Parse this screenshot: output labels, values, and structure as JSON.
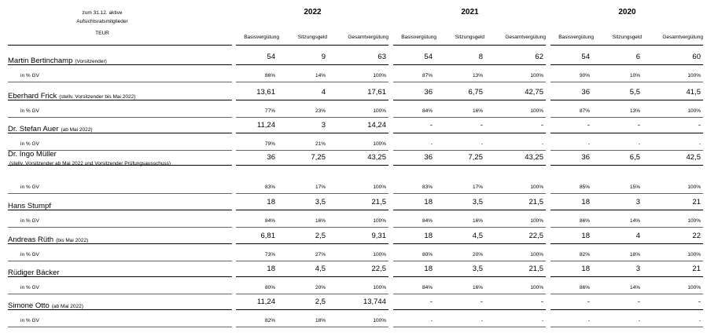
{
  "header": {
    "label_line1": "zum 31.12. aktive",
    "label_line2": "Aufsichtsratsmitglieder",
    "unit": "TEUR",
    "years": [
      "2022",
      "2021",
      "2020"
    ],
    "columns": [
      "Basisvergütung",
      "Sitzungsgeld",
      "Gesamtvergütung"
    ]
  },
  "pct_label": "in % GV",
  "members": [
    {
      "name": "Martin Bertinchamp",
      "note": "(Vorsitzender)",
      "values": [
        [
          "54",
          "9",
          "63"
        ],
        [
          "54",
          "8",
          "62"
        ],
        [
          "54",
          "6",
          "60"
        ]
      ],
      "pcts": [
        [
          "86%",
          "14%",
          "100%"
        ],
        [
          "87%",
          "13%",
          "100%"
        ],
        [
          "90%",
          "10%",
          "100%"
        ]
      ]
    },
    {
      "name": "Eberhard Frick",
      "note": "(stellv. Vorsitzender bis Mai 2022)",
      "values": [
        [
          "13,61",
          "4",
          "17,61"
        ],
        [
          "36",
          "6,75",
          "42,75"
        ],
        [
          "36",
          "5,5",
          "41,5"
        ]
      ],
      "pcts": [
        [
          "77%",
          "23%",
          "100%"
        ],
        [
          "84%",
          "16%",
          "100%"
        ],
        [
          "87%",
          "13%",
          "100%"
        ]
      ]
    },
    {
      "name": "Dr. Stefan Auer",
      "note": "(ab Mai 2022)",
      "values": [
        [
          "11,24",
          "3",
          "14,24"
        ],
        [
          "-",
          "-",
          "-"
        ],
        [
          "-",
          "-",
          "-"
        ]
      ],
      "pcts": [
        [
          "79%",
          "21%",
          "100%"
        ],
        [
          "-",
          "-",
          "-"
        ],
        [
          "-",
          "-",
          "-"
        ]
      ]
    },
    {
      "name": "Dr. Ingo Müller",
      "note": "(stellv. Vorsitzender ab Mai 2022 und Vorsitzender Prüfungsausschuss)",
      "values": [
        [
          "36",
          "7,25",
          "43,25"
        ],
        [
          "36",
          "7,25",
          "43,25"
        ],
        [
          "36",
          "6,5",
          "42,5"
        ]
      ],
      "pcts": [
        [
          "83%",
          "17%",
          "100%"
        ],
        [
          "83%",
          "17%",
          "100%"
        ],
        [
          "85%",
          "15%",
          "100%"
        ]
      ]
    },
    {
      "name": "Hans Stumpf",
      "note": "",
      "values": [
        [
          "18",
          "3,5",
          "21,5"
        ],
        [
          "18",
          "3,5",
          "21,5"
        ],
        [
          "18",
          "3",
          "21"
        ]
      ],
      "pcts": [
        [
          "84%",
          "16%",
          "100%"
        ],
        [
          "84%",
          "16%",
          "100%"
        ],
        [
          "86%",
          "14%",
          "100%"
        ]
      ]
    },
    {
      "name": "Andreas Rüth",
      "note": "(bis Mai 2022)",
      "values": [
        [
          "6,81",
          "2,5",
          "9,31"
        ],
        [
          "18",
          "4,5",
          "22,5"
        ],
        [
          "18",
          "4",
          "22"
        ]
      ],
      "pcts": [
        [
          "73%",
          "27%",
          "100%"
        ],
        [
          "80%",
          "20%",
          "100%"
        ],
        [
          "82%",
          "18%",
          "100%"
        ]
      ]
    },
    {
      "name": "Rüdiger Bäcker",
      "note": "",
      "values": [
        [
          "18",
          "4,5",
          "22,5"
        ],
        [
          "18",
          "3,5",
          "21,5"
        ],
        [
          "18",
          "3",
          "21"
        ]
      ],
      "pcts": [
        [
          "80%",
          "20%",
          "100%"
        ],
        [
          "84%",
          "16%",
          "100%"
        ],
        [
          "86%",
          "14%",
          "100%"
        ]
      ]
    },
    {
      "name": "Simone Otto",
      "note": "(ab Mai 2022)",
      "values": [
        [
          "11,24",
          "2,5",
          "13,744"
        ],
        [
          "-",
          "-",
          "-"
        ],
        [
          "-",
          "-",
          "-"
        ]
      ],
      "pcts": [
        [
          "82%",
          "18%",
          "100%"
        ],
        [
          "-",
          "-",
          "-"
        ],
        [
          "-",
          "-",
          "-"
        ]
      ]
    }
  ]
}
